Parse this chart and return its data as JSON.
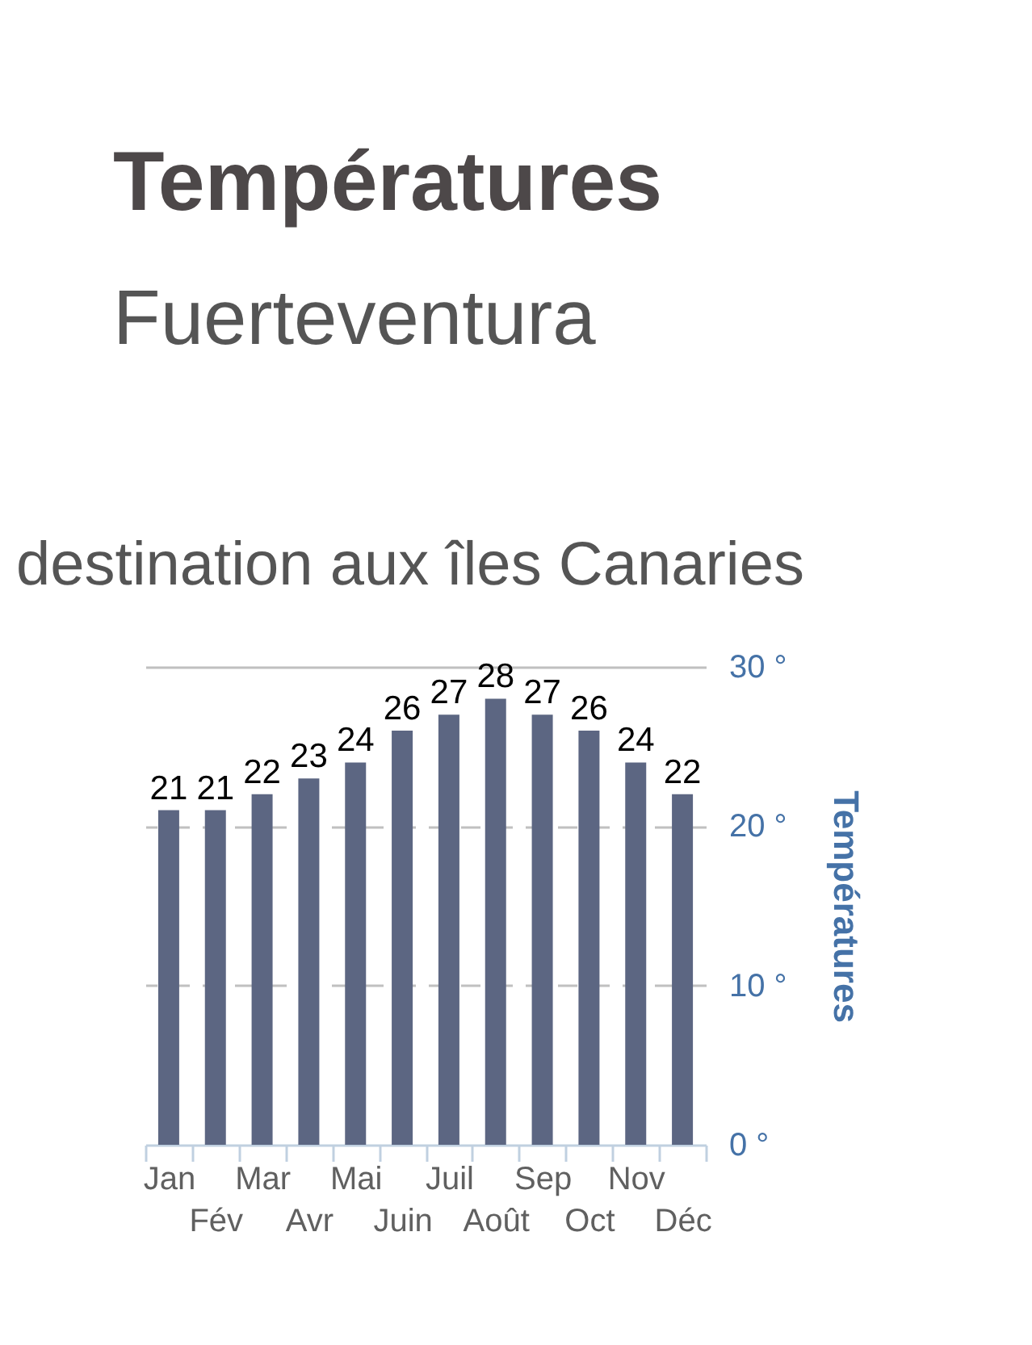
{
  "chart_data": {
    "type": "bar",
    "title": "Températures",
    "subtitle": "Fuerteventura",
    "ylabel": "Températures",
    "annotations": [
      "destination aux îles Canaries"
    ],
    "categories": [
      "Jan",
      "Fév",
      "Mar",
      "Avr",
      "Mai",
      "Juin",
      "Juil",
      "Août",
      "Sep",
      "Oct",
      "Nov",
      "Déc"
    ],
    "values": [
      21,
      21,
      22,
      23,
      24,
      26,
      27,
      28,
      27,
      26,
      24,
      22
    ],
    "color": "#5c6682",
    "ylim": [
      0,
      30
    ],
    "yticks": [
      {
        "value": 0,
        "label": "0 °"
      },
      {
        "value": 10,
        "label": "10 °"
      },
      {
        "value": 20,
        "label": "20 °"
      },
      {
        "value": 30,
        "label": "30 °"
      }
    ],
    "grid": "y",
    "data_labels": true
  }
}
